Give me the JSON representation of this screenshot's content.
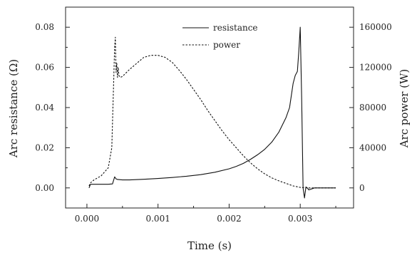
{
  "chart_data": {
    "type": "line",
    "xlabel": "Time (s)",
    "ylabel_left": "Arc resistance (Ω)",
    "ylabel_right": "Arc power (W)",
    "xlim": [
      -0.0003,
      0.00375
    ],
    "ylim_left": [
      -0.01,
      0.09
    ],
    "ylim_right": [
      -20000,
      180000
    ],
    "x_ticks": [
      "0.000",
      "0.001",
      "0.002",
      "0.003"
    ],
    "x_tick_values": [
      0,
      0.001,
      0.002,
      0.003
    ],
    "y_left_ticks": [
      "0.00",
      "0.02",
      "0.04",
      "0.06",
      "0.08"
    ],
    "y_left_tick_values": [
      0,
      0.02,
      0.04,
      0.06,
      0.08
    ],
    "y_right_ticks": [
      "0",
      "40000",
      "80000",
      "120000",
      "160000"
    ],
    "y_right_tick_values": [
      0,
      40000,
      80000,
      120000,
      160000
    ],
    "grid": false,
    "legend_position": "top-center",
    "series": [
      {
        "name": "resistance",
        "axis": "left",
        "style": "solid",
        "x": [
          3e-05,
          5e-05,
          0.0001,
          0.0002,
          0.0003,
          0.00036,
          0.00039,
          0.00041,
          0.00043,
          0.0005,
          0.0006,
          0.0008,
          0.001,
          0.0012,
          0.0014,
          0.0016,
          0.0018,
          0.002,
          0.0021,
          0.0022,
          0.0023,
          0.0024,
          0.0025,
          0.0026,
          0.0027,
          0.0028,
          0.00285,
          0.0029,
          0.00293,
          0.00296,
          0.00298,
          0.003,
          0.00302,
          0.00304,
          0.00306,
          0.00308,
          0.0031,
          0.00312,
          0.0032,
          0.0033,
          0.0034,
          0.0035
        ],
        "y": [
          0.0,
          0.0018,
          0.0018,
          0.0018,
          0.0018,
          0.002,
          0.0055,
          0.0045,
          0.0042,
          0.004,
          0.004,
          0.0043,
          0.0047,
          0.0052,
          0.0058,
          0.0066,
          0.0078,
          0.0095,
          0.0107,
          0.0122,
          0.0142,
          0.0165,
          0.0192,
          0.0228,
          0.0278,
          0.035,
          0.04,
          0.052,
          0.056,
          0.058,
          0.068,
          0.08,
          0.045,
          0.0,
          -0.005,
          0.0005,
          0.0,
          -0.001,
          0.0,
          0.0,
          0.0,
          0.0
        ]
      },
      {
        "name": "power",
        "axis": "right",
        "style": "dashed",
        "x": [
          3e-05,
          5e-05,
          0.0001,
          0.0002,
          0.0003,
          0.00035,
          0.00037,
          0.00039,
          0.0004,
          0.00041,
          0.00042,
          0.00043,
          0.00044,
          0.00045,
          0.00047,
          0.0005,
          0.0006,
          0.0007,
          0.0008,
          0.0009,
          0.001,
          0.0011,
          0.0012,
          0.0013,
          0.0014,
          0.0015,
          0.0016,
          0.0017,
          0.0018,
          0.0019,
          0.002,
          0.0021,
          0.0022,
          0.0023,
          0.0024,
          0.0025,
          0.0026,
          0.0027,
          0.0028,
          0.0029,
          0.003,
          0.0031,
          0.0032,
          0.0033,
          0.0034,
          0.0035
        ],
        "y": [
          2000,
          5000,
          8000,
          12000,
          20000,
          40000,
          90000,
          140000,
          150000,
          115000,
          124000,
          110000,
          120000,
          112000,
          110000,
          111000,
          118000,
          124000,
          130000,
          132000,
          132000,
          130000,
          125000,
          117000,
          108000,
          98000,
          88000,
          77000,
          67000,
          57000,
          48000,
          40000,
          32000,
          25000,
          19000,
          14000,
          10000,
          7000,
          4500,
          2000,
          500,
          0,
          0,
          0,
          0,
          0
        ]
      }
    ]
  }
}
